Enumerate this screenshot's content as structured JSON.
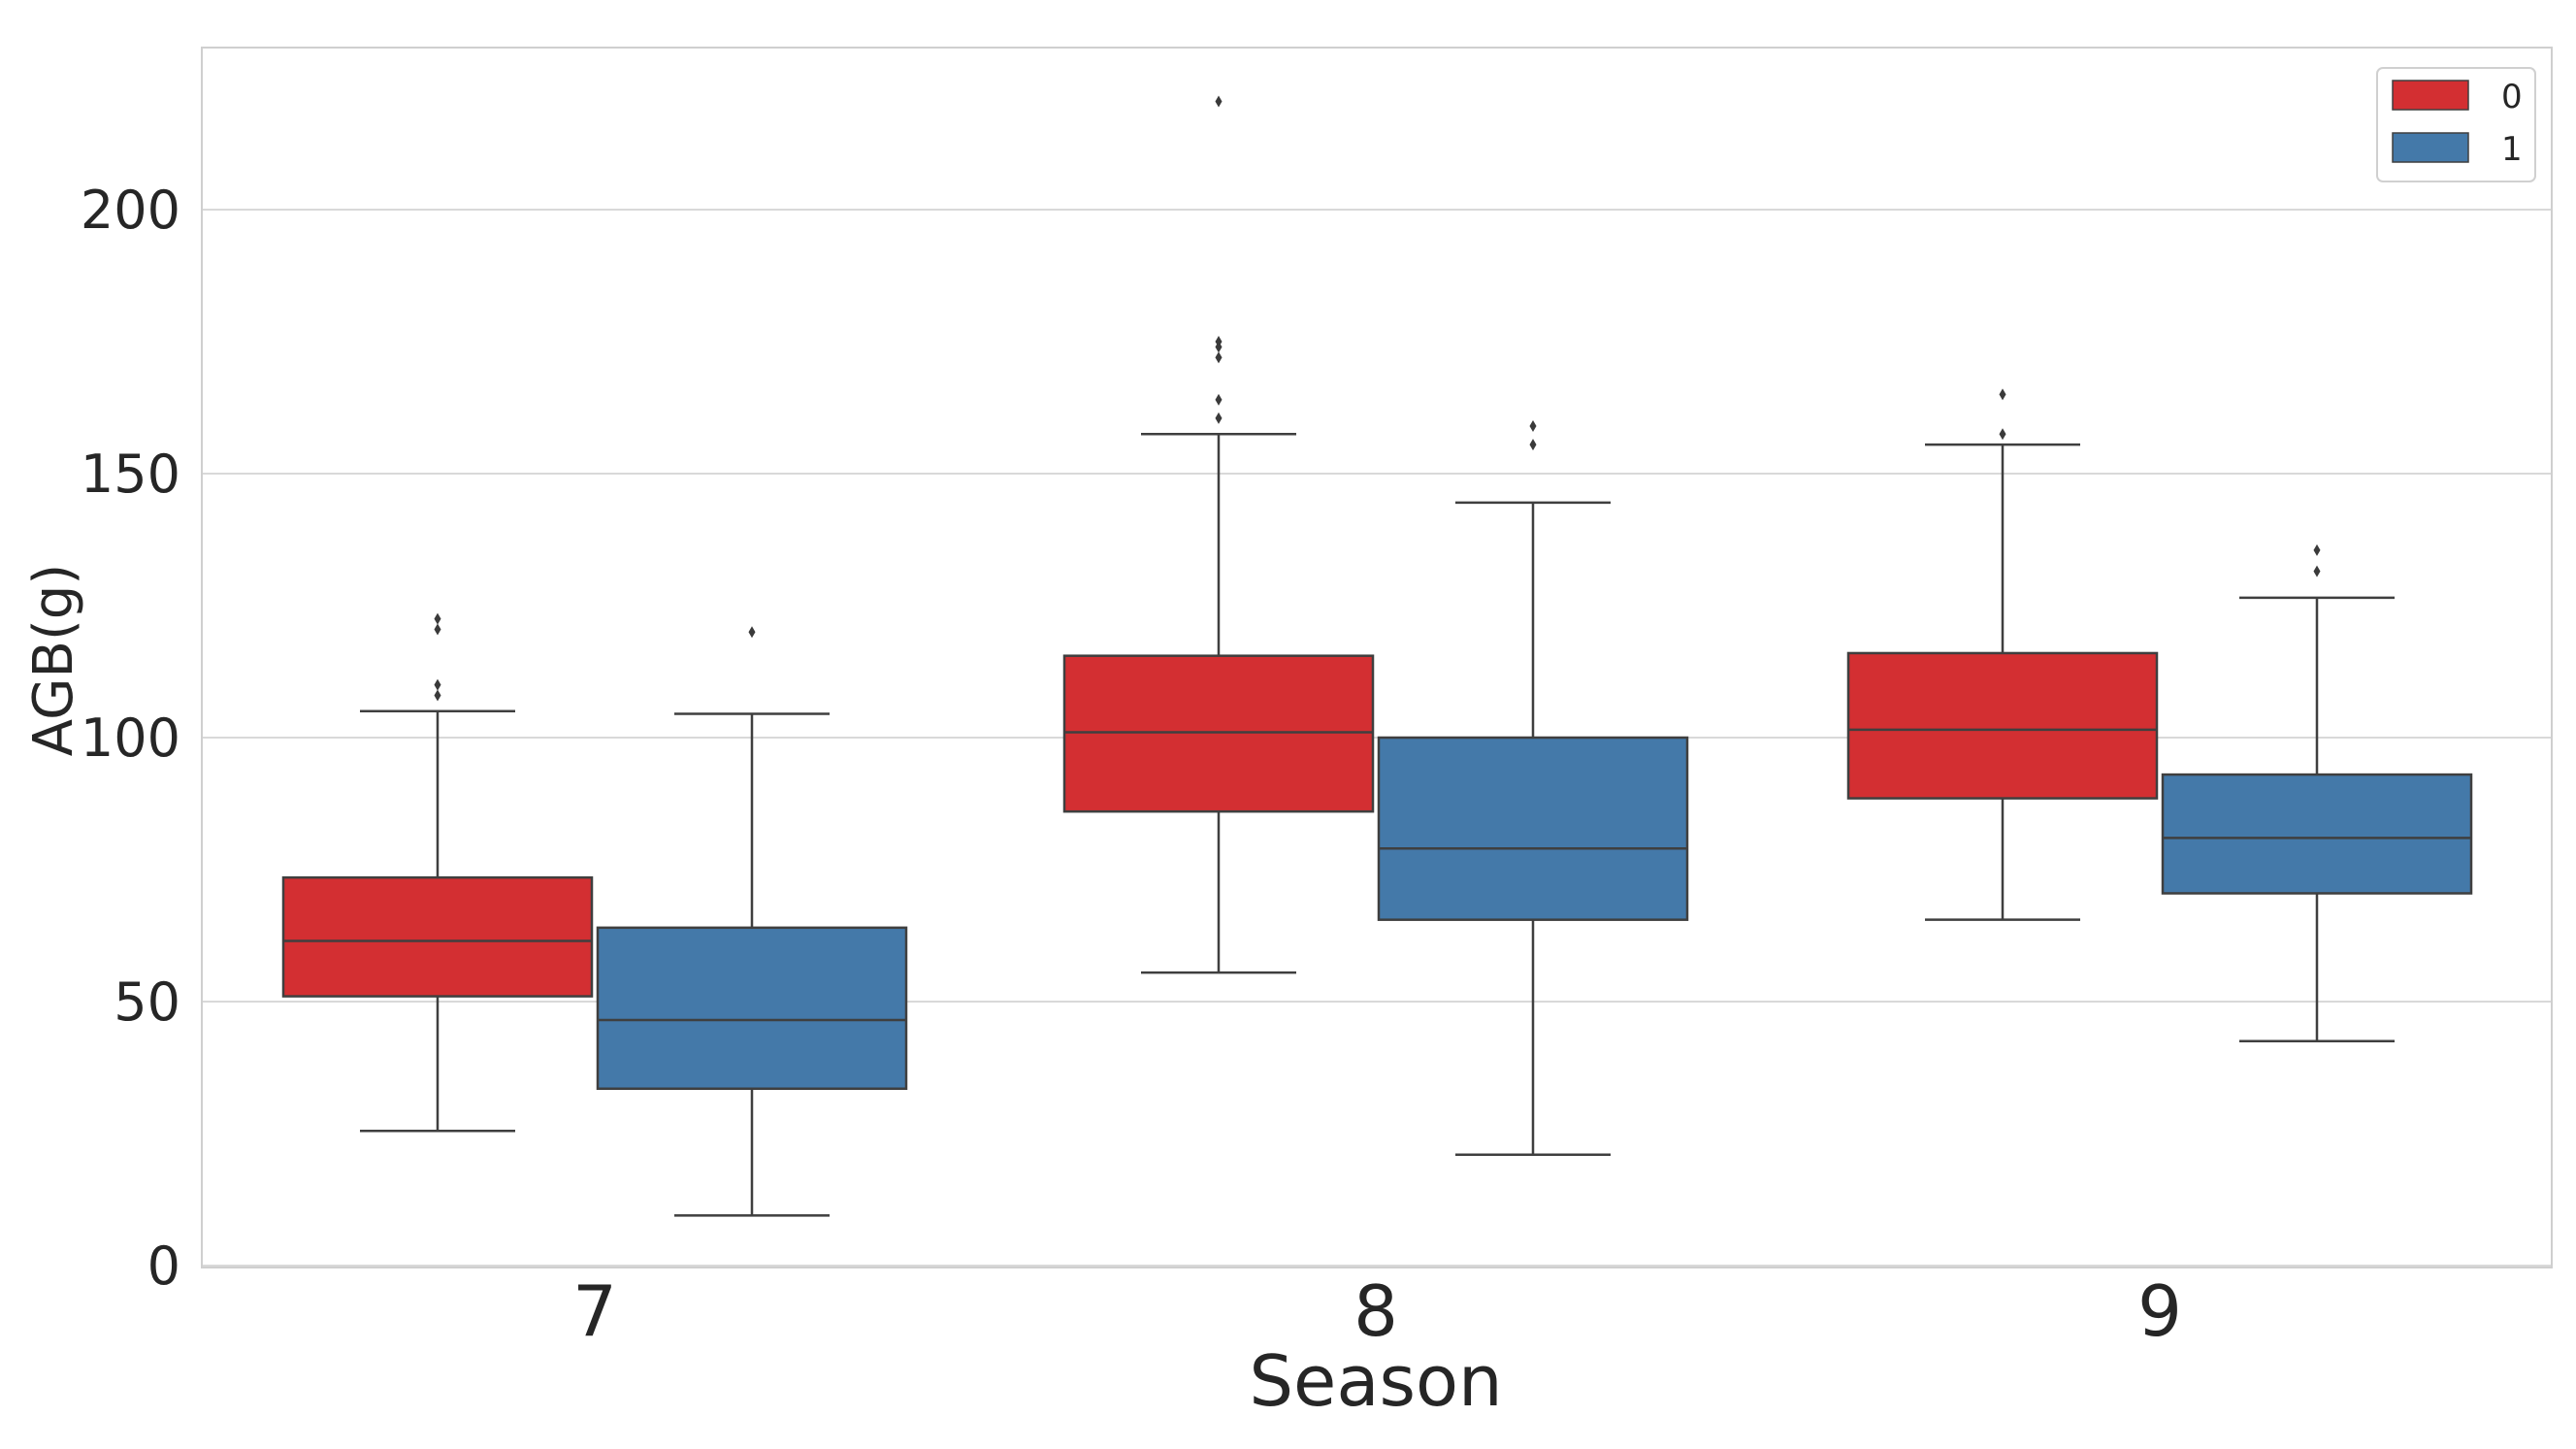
{
  "colors": {
    "series_0": "#d32f32",
    "series_1": "#4479a9",
    "edge": "#3f3f3f",
    "grid": "#d9d9d9",
    "frame": "#cfcfcf"
  },
  "chart_data": {
    "type": "box",
    "title": "",
    "xlabel": "Season",
    "ylabel": "AGB(g)",
    "ylim": [
      -2,
      232
    ],
    "yticks": [
      0,
      50,
      100,
      150,
      200
    ],
    "ytick_labels": [
      "0",
      "50",
      "100",
      "150",
      "200"
    ],
    "categories": [
      "7",
      "8",
      "9"
    ],
    "grid": true,
    "legend_position": "top-right",
    "series": [
      {
        "name": "0",
        "color": "#d32f32",
        "boxes": [
          {
            "category": "7",
            "whisker_low": 25.5,
            "q1": 51,
            "median": 61.5,
            "q3": 73.5,
            "whisker_high": 105,
            "outliers": [
              108,
              110,
              120.5,
              122.5
            ]
          },
          {
            "category": "8",
            "whisker_low": 55.5,
            "q1": 86,
            "median": 101,
            "q3": 115.5,
            "whisker_high": 157.5,
            "outliers": [
              160.5,
              164,
              172,
              174,
              175,
              220.5
            ]
          },
          {
            "category": "9",
            "whisker_low": 65.5,
            "q1": 88.5,
            "median": 101.5,
            "q3": 116,
            "whisker_high": 155.5,
            "outliers": [
              157.5,
              165
            ]
          }
        ]
      },
      {
        "name": "1",
        "color": "#4479a9",
        "boxes": [
          {
            "category": "7",
            "whisker_low": 9.5,
            "q1": 33.5,
            "median": 46.5,
            "q3": 64,
            "whisker_high": 104.5,
            "outliers": [
              120
            ]
          },
          {
            "category": "8",
            "whisker_low": 21,
            "q1": 65.5,
            "median": 79,
            "q3": 100,
            "whisker_high": 144.5,
            "outliers": [
              155.5,
              159
            ]
          },
          {
            "category": "9",
            "whisker_low": 42.5,
            "q1": 70.5,
            "median": 81,
            "q3": 93,
            "whisker_high": 126.5,
            "outliers": [
              131.5,
              135.5
            ]
          }
        ]
      }
    ]
  }
}
